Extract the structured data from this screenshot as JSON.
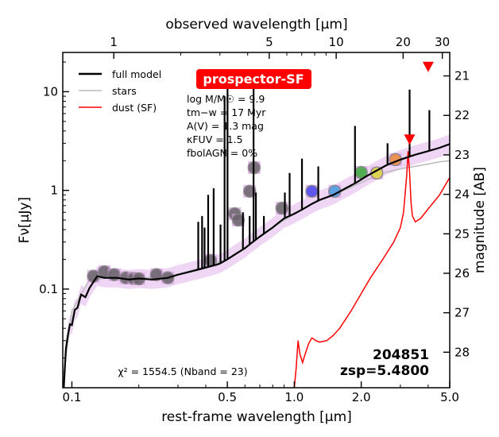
{
  "chart_data": {
    "type": "line",
    "badge": "prospector-SF",
    "top_axis_label": "observed wavelength [μm]",
    "x_axis_label": "rest-frame wavelength [μm]",
    "y_axis_label": "Fν[μJy]",
    "right_axis_label": "magnitude [AB]",
    "x_scale": "log",
    "y_scale": "log",
    "xlim": [
      0.091,
      5.0
    ],
    "ylim": [
      0.01,
      25
    ],
    "x_ticks": [
      {
        "value": 0.1,
        "label": "0.1"
      },
      {
        "value": 0.5,
        "label": "0.5"
      },
      {
        "value": 1.0,
        "label": "1.0"
      },
      {
        "value": 2.0,
        "label": "2.0"
      },
      {
        "value": 5.0,
        "label": "5.0"
      }
    ],
    "y_ticks": [
      {
        "value": 0.1,
        "label": "0.1"
      },
      {
        "value": 1,
        "label": "1"
      },
      {
        "value": 10,
        "label": "10"
      }
    ],
    "top_ticks": [
      {
        "value": 1,
        "label": "1"
      },
      {
        "value": 5,
        "label": "5"
      },
      {
        "value": 10,
        "label": "10"
      },
      {
        "value": 20,
        "label": "20"
      },
      {
        "value": 30,
        "label": "30"
      }
    ],
    "mag_ticks": [
      {
        "value": 21,
        "label": "21"
      },
      {
        "value": 22,
        "label": "22"
      },
      {
        "value": 23,
        "label": "23"
      },
      {
        "value": 24,
        "label": "24"
      },
      {
        "value": 25,
        "label": "25"
      },
      {
        "value": 26,
        "label": "26"
      },
      {
        "value": 27,
        "label": "27"
      },
      {
        "value": 28,
        "label": "28"
      }
    ],
    "legend": [
      {
        "label": "full model",
        "color": "#000000"
      },
      {
        "label": "stars",
        "color": "#bbbbbb"
      },
      {
        "label": "dust (SF)",
        "color": "#ff0000"
      }
    ],
    "legend_position": "top-left",
    "params": {
      "logM": "log M/M☉ = 9.9",
      "tm": "tm−w = 17 Myr",
      "av": "A(V) = 1.3 mag",
      "kappa": "κFUV = 1.5",
      "fagn": "fbolAGN = 0%"
    },
    "chi2": "χ² = 1554.5 (Nband = 23)",
    "object_id": "204851",
    "redshift": "zsp=5.4800",
    "colors": {
      "model": "#000000",
      "stars": "#bbbbbb",
      "dust": "#ff0000",
      "model_band": "#dca3e6",
      "badge": "#ff0000",
      "upper_limit": "#ff0000"
    },
    "series": [
      {
        "name": "full model",
        "x": [
          0.092,
          0.094,
          0.096,
          0.098,
          0.1,
          0.103,
          0.106,
          0.11,
          0.115,
          0.12,
          0.13,
          0.14,
          0.16,
          0.18,
          0.2,
          0.23,
          0.27,
          0.3,
          0.34,
          0.38,
          0.42,
          0.46,
          0.5,
          0.55,
          0.6,
          0.65,
          0.7,
          0.75,
          0.8,
          0.85,
          0.9,
          1.0,
          1.1,
          1.2,
          1.3,
          1.5,
          1.7,
          1.9,
          2.1,
          2.3,
          2.6,
          3.0,
          3.5,
          4.0,
          4.5,
          5.0
        ],
        "y": [
          0.014,
          0.03,
          0.045,
          0.05,
          0.06,
          0.075,
          0.085,
          0.1,
          0.115,
          0.125,
          0.135,
          0.13,
          0.13,
          0.125,
          0.128,
          0.125,
          0.13,
          0.14,
          0.15,
          0.16,
          0.17,
          0.18,
          0.2,
          0.23,
          0.26,
          0.3,
          0.34,
          0.38,
          0.42,
          0.47,
          0.52,
          0.58,
          0.65,
          0.73,
          0.8,
          0.9,
          1.05,
          1.2,
          1.38,
          1.55,
          1.8,
          2.05,
          2.3,
          2.5,
          2.7,
          2.95
        ]
      },
      {
        "name": "stars",
        "x": [
          0.092,
          0.1,
          0.12,
          0.15,
          0.2,
          0.3,
          0.4,
          0.5,
          0.6,
          0.7,
          0.8,
          1.0,
          1.2,
          1.5,
          2.0,
          2.5,
          3.0,
          3.5,
          4.0,
          4.5,
          5.0
        ],
        "y": [
          0.014,
          0.06,
          0.125,
          0.13,
          0.128,
          0.14,
          0.17,
          0.2,
          0.26,
          0.34,
          0.42,
          0.58,
          0.73,
          0.9,
          1.2,
          1.5,
          1.65,
          1.75,
          1.85,
          1.95,
          2.0
        ]
      },
      {
        "name": "dust (SF)",
        "x": [
          1.0,
          1.02,
          1.04,
          1.06,
          1.09,
          1.12,
          1.16,
          1.2,
          1.25,
          1.3,
          1.4,
          1.5,
          1.6,
          1.8,
          2.0,
          2.2,
          2.5,
          2.8,
          3.0,
          3.1,
          3.2,
          3.25,
          3.3,
          3.35,
          3.4,
          3.5,
          3.7,
          4.0,
          4.5,
          5.0
        ],
        "y": [
          0.01,
          0.016,
          0.03,
          0.022,
          0.018,
          0.022,
          0.028,
          0.032,
          0.03,
          0.029,
          0.03,
          0.034,
          0.04,
          0.06,
          0.09,
          0.13,
          0.2,
          0.3,
          0.42,
          0.6,
          1.4,
          2.5,
          1.5,
          0.75,
          0.55,
          0.48,
          0.52,
          0.65,
          0.9,
          1.35
        ]
      }
    ],
    "emission_lines": [
      {
        "x": 0.37,
        "peak": 0.48
      },
      {
        "x": 0.385,
        "peak": 0.55
      },
      {
        "x": 0.395,
        "peak": 0.42
      },
      {
        "x": 0.41,
        "peak": 0.9
      },
      {
        "x": 0.434,
        "peak": 1.05
      },
      {
        "x": 0.466,
        "peak": 0.45
      },
      {
        "x": 0.486,
        "peak": 9.0
      },
      {
        "x": 0.501,
        "peak": 14.0
      },
      {
        "x": 0.5876,
        "peak": 0.6
      },
      {
        "x": 0.63,
        "peak": 0.55
      },
      {
        "x": 0.656,
        "peak": 16.0
      },
      {
        "x": 0.672,
        "peak": 0.95
      },
      {
        "x": 0.73,
        "peak": 0.55
      },
      {
        "x": 0.907,
        "peak": 0.95
      },
      {
        "x": 0.953,
        "peak": 1.5
      },
      {
        "x": 1.083,
        "peak": 2.1
      },
      {
        "x": 1.282,
        "peak": 1.75
      },
      {
        "x": 1.875,
        "peak": 4.5
      },
      {
        "x": 2.626,
        "peak": 3.0
      },
      {
        "x": 3.3,
        "peak": 10.5
      },
      {
        "x": 4.05,
        "peak": 6.5
      }
    ],
    "photometry": [
      {
        "x": 0.125,
        "y": 0.135,
        "color": "#555555"
      },
      {
        "x": 0.14,
        "y": 0.15,
        "color": "#555555"
      },
      {
        "x": 0.155,
        "y": 0.14,
        "color": "#555555"
      },
      {
        "x": 0.175,
        "y": 0.13,
        "color": "#555555"
      },
      {
        "x": 0.19,
        "y": 0.128,
        "color": "#555555"
      },
      {
        "x": 0.2,
        "y": 0.127,
        "color": "#555555"
      },
      {
        "x": 0.24,
        "y": 0.14,
        "color": "#555555"
      },
      {
        "x": 0.27,
        "y": 0.13,
        "color": "#555555"
      },
      {
        "x": 0.42,
        "y": 0.195,
        "color": "#555555"
      },
      {
        "x": 0.54,
        "y": 0.58,
        "color": "#555555"
      },
      {
        "x": 0.56,
        "y": 0.5,
        "color": "#555555"
      },
      {
        "x": 0.63,
        "y": 0.98,
        "color": "#555555"
      },
      {
        "x": 0.66,
        "y": 1.7,
        "color": "#555555"
      },
      {
        "x": 0.88,
        "y": 0.66,
        "color": "#555555"
      },
      {
        "x": 1.2,
        "y": 0.98,
        "color": "#3333ee"
      },
      {
        "x": 1.52,
        "y": 0.98,
        "color": "#3399dd"
      },
      {
        "x": 2.0,
        "y": 1.52,
        "color": "#22aa22"
      },
      {
        "x": 2.35,
        "y": 1.5,
        "color": "#dddd22"
      },
      {
        "x": 2.85,
        "y": 2.05,
        "color": "#ee8822"
      }
    ],
    "upper_limits": [
      {
        "x": 3.3,
        "y": 3.3
      },
      {
        "x": 4.0,
        "y": 18.0
      }
    ]
  }
}
